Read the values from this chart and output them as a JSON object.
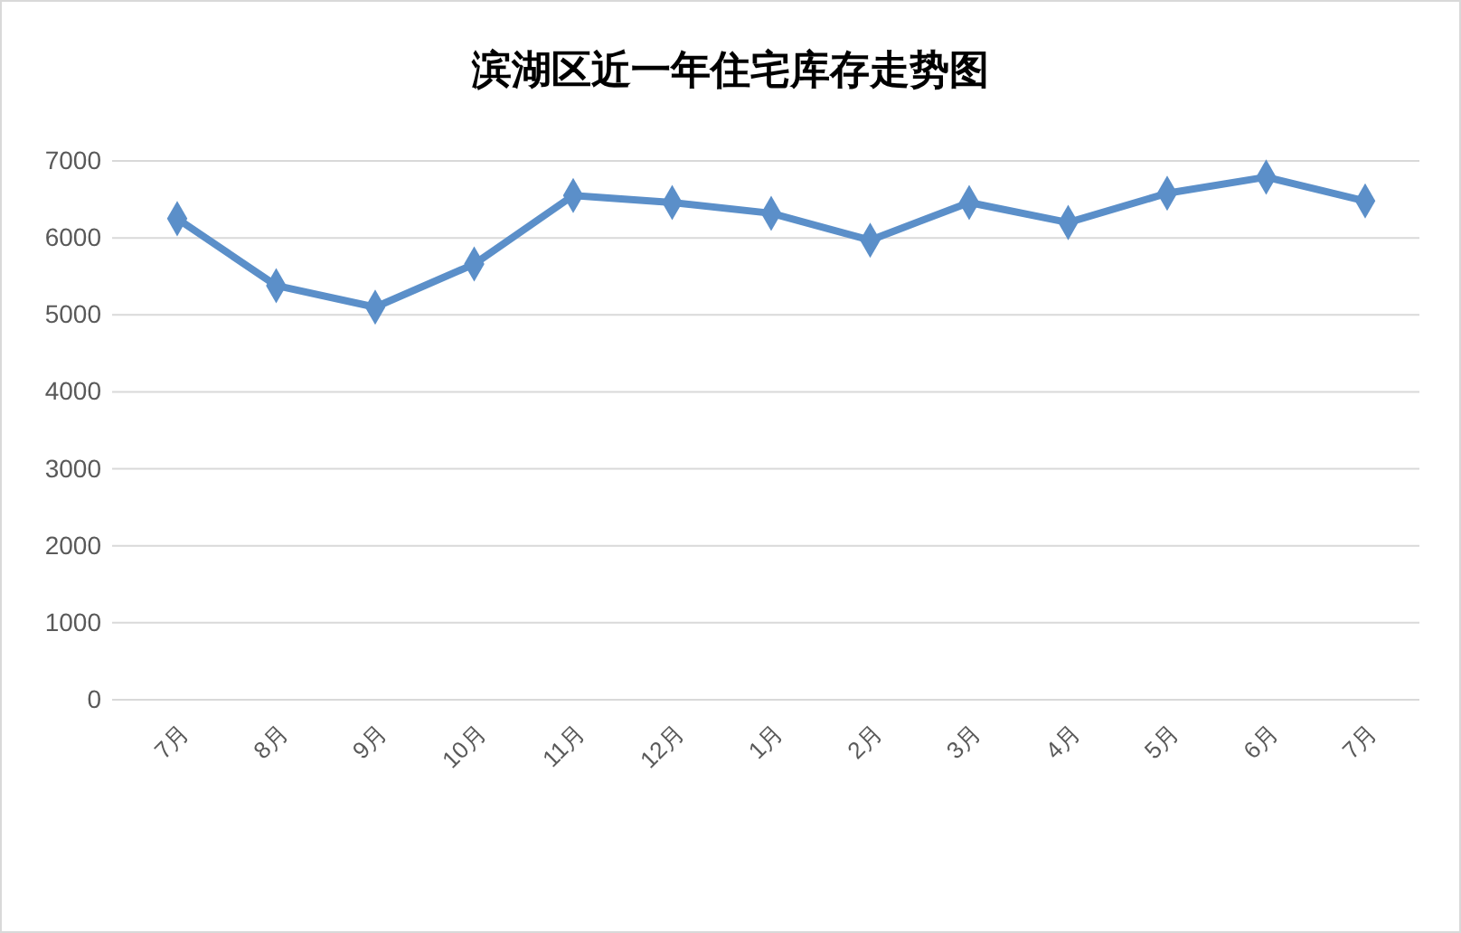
{
  "chart_data": {
    "type": "line",
    "title": "滨湖区近一年住宅库存走势图",
    "categories": [
      "7月",
      "8月",
      "9月",
      "10月",
      "11月",
      "12月",
      "1月",
      "2月",
      "3月",
      "4月",
      "5月",
      "6月",
      "7月"
    ],
    "series": [
      {
        "color": "#5b8fc9",
        "values": [
          6250,
          5380,
          5100,
          5660,
          6550,
          6460,
          6320,
          5970,
          6460,
          6200,
          6580,
          6790,
          6480
        ]
      }
    ],
    "ylim": [
      0,
      7000
    ],
    "yticks": [
      0,
      1000,
      2000,
      3000,
      4000,
      5000,
      6000,
      7000
    ],
    "grid": "y",
    "marker": "diamond",
    "line_style": "solid"
  }
}
